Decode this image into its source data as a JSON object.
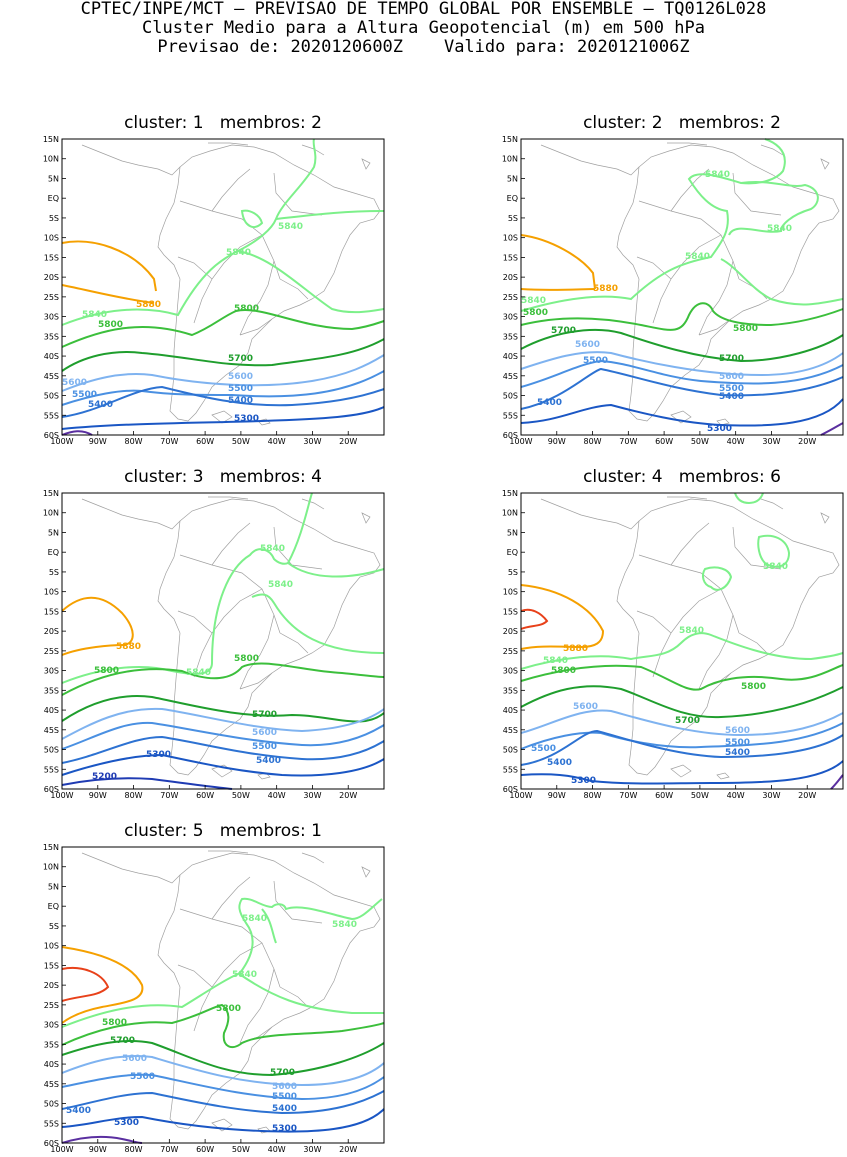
{
  "header": {
    "line1": "CPTEC/INPE/MCT — PREVISAO DE TEMPO GLOBAL POR ENSEMBLE — TQ0126L028",
    "line2": "Cluster Medio para a Altura Geopotencial (m) em 500 hPa",
    "line3": "Previsao de: 2020120600Z    Valido para: 2020121006Z"
  },
  "axes": {
    "lat_labels": [
      "15N",
      "10N",
      "5N",
      "EQ",
      "5S",
      "10S",
      "15S",
      "20S",
      "25S",
      "30S",
      "35S",
      "40S",
      "45S",
      "50S",
      "55S",
      "60S"
    ],
    "lon_labels": [
      "100W",
      "90W",
      "80W",
      "70W",
      "60W",
      "50W",
      "40W",
      "30W",
      "20W"
    ]
  },
  "colors": {
    "c5200": "#1f3bb3",
    "c5300": "#1a56c4",
    "c5400": "#2d72d2",
    "c5500": "#4a90e2",
    "c5600": "#7fb3f0",
    "c5700": "#1f9e2d",
    "c5800": "#3cbf3c",
    "c5840": "#7df08a",
    "c5880": "#f5a000",
    "c5900": "#e8411a",
    "c5100": "#5a2fa0",
    "coast": "#a0a0a0"
  },
  "panels": [
    {
      "title": "cluster: 1   membros: 2",
      "labels": {
        "5880": "5880",
        "5840a": "5840",
        "5840b": "5840",
        "5840c": "5840",
        "5800a": "5800",
        "5800b": "5800",
        "5700": "5700",
        "5600a": "5600",
        "5600b": "5600",
        "5500a": "5500",
        "5500b": "5500",
        "5400a": "5400",
        "5400b": "5400",
        "5300": "5300"
      }
    },
    {
      "title": "cluster: 2   membros: 2",
      "labels": {
        "5880": "5880",
        "5840a": "5840",
        "5840b": "5840",
        "5840c": "5840",
        "5840d": "5840",
        "5800a": "5800",
        "5800b": "5800",
        "5700a": "5700",
        "5700b": "5700",
        "5600a": "5600",
        "5600b": "5600",
        "5500a": "5500",
        "5500b": "5500",
        "5400a": "5400",
        "5400b": "5400",
        "5300": "5300"
      }
    },
    {
      "title": "cluster: 3   membros: 4",
      "labels": {
        "5880": "5880",
        "5840a": "5840",
        "5840b": "5840",
        "5840c": "5840",
        "5800a": "5800",
        "5800b": "5800",
        "5700": "5700",
        "5600": "5600",
        "5500": "5500",
        "5400": "5400",
        "5300": "5300",
        "5200": "5200"
      }
    },
    {
      "title": "cluster: 4   membros: 6",
      "labels": {
        "5880": "5880",
        "5840a": "5840",
        "5840b": "5840",
        "5840c": "5840",
        "5800a": "5800",
        "5800b": "5800",
        "5700": "5700",
        "5600a": "5600",
        "5600b": "5600",
        "5500a": "5500",
        "5500b": "5500",
        "5400a": "5400",
        "5400b": "5400",
        "5300": "5300"
      }
    },
    {
      "title": "cluster: 5   membros: 1",
      "labels": {
        "5840a": "5840",
        "5840b": "5840",
        "5840c": "5840",
        "5800a": "5800",
        "5800b": "5800",
        "5700a": "5700",
        "5700b": "5700",
        "5600a": "5600",
        "5600b": "5600",
        "5500a": "5500",
        "5500b": "5500",
        "5400a": "5400",
        "5400b": "5400",
        "5300a": "5300",
        "5300b": "5300"
      }
    }
  ]
}
